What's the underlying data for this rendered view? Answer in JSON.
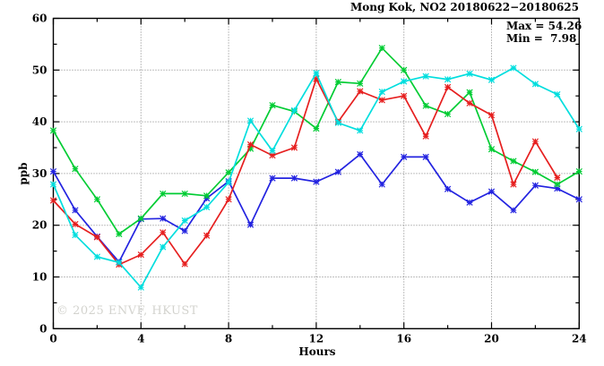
{
  "title": "Mong Kok, NO2 20180622−20180625",
  "legend": {
    "max_label": "Max = 54.26",
    "min_label": "Min =  7.98"
  },
  "watermark": "© 2025 ENVF, HKUST",
  "chart_data": {
    "type": "line",
    "title": "Mong Kok, NO2 20180622−20180625",
    "xlabel": "Hours",
    "ylabel": "ppb",
    "xlim": [
      0,
      24
    ],
    "ylim": [
      0,
      60
    ],
    "grid": true,
    "legend_position": "top-right",
    "stats": {
      "max": 54.26,
      "min": 7.98
    },
    "x_major_ticks": [
      0,
      4,
      8,
      12,
      16,
      20,
      24
    ],
    "x_minor_ticks": [
      2,
      6,
      10,
      14,
      18,
      22
    ],
    "y_major_ticks": [
      0,
      10,
      20,
      30,
      40,
      50,
      60
    ],
    "y_minor_ticks": [
      5,
      15,
      25,
      35,
      45,
      55
    ],
    "x": [
      0,
      1,
      2,
      3,
      4,
      5,
      6,
      7,
      8,
      9,
      10,
      11,
      12,
      13,
      14,
      15,
      16,
      17,
      18,
      19,
      20,
      21,
      22,
      23,
      24
    ],
    "series": [
      {
        "name": "series-blue",
        "color": "#2323e0",
        "values": [
          30.4,
          22.9,
          17.8,
          12.9,
          21.2,
          21.3,
          18.9,
          25.2,
          28.5,
          20.1,
          29.1,
          29.1,
          28.4,
          30.3,
          33.7,
          27.9,
          33.2,
          33.2,
          27.0,
          24.4,
          26.5,
          22.9,
          27.7,
          27.1,
          25.0
        ]
      },
      {
        "name": "series-green",
        "color": "#00cc33",
        "values": [
          38.3,
          30.9,
          25.0,
          18.3,
          21.3,
          26.1,
          26.1,
          25.7,
          30.2,
          34.8,
          43.2,
          42.0,
          38.7,
          47.7,
          47.4,
          54.26,
          50.0,
          43.1,
          41.5,
          45.7,
          34.7,
          32.4,
          30.3,
          27.9,
          30.4
        ]
      },
      {
        "name": "series-red",
        "color": "#e61f1f",
        "values": [
          24.8,
          20.2,
          17.7,
          12.4,
          14.3,
          18.6,
          12.5,
          18.0,
          25.0,
          35.6,
          33.5,
          35.0,
          48.3,
          40.0,
          45.9,
          44.2,
          45.0,
          37.2,
          46.7,
          43.6,
          41.3,
          27.9,
          36.2,
          29.2,
          null
        ]
      },
      {
        "name": "series-cyan",
        "color": "#00dede",
        "values": [
          27.9,
          18.1,
          13.9,
          12.8,
          7.98,
          15.8,
          20.9,
          23.5,
          28.3,
          40.2,
          34.4,
          42.2,
          49.4,
          39.8,
          38.3,
          45.8,
          47.8,
          48.8,
          48.2,
          49.3,
          48.1,
          50.4,
          47.3,
          45.3,
          38.6
        ]
      }
    ]
  }
}
